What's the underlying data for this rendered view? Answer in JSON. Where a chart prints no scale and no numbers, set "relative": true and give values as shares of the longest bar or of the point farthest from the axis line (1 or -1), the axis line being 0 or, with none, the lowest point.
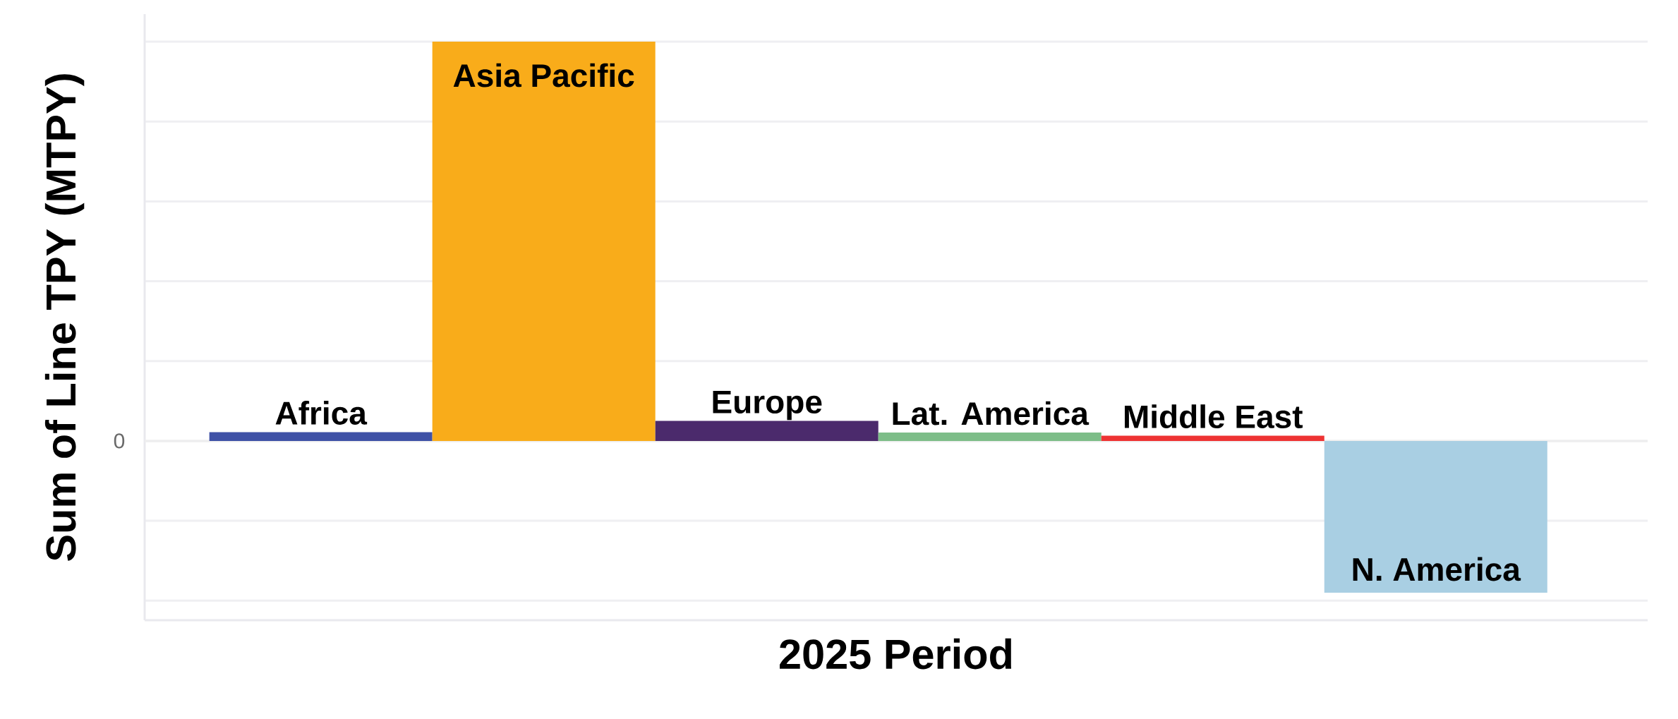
{
  "chart_data": {
    "type": "bar",
    "relative": true,
    "categories": [
      "Africa",
      "Asia Pacific",
      "Europe",
      "Lat. America",
      "Middle East",
      "N. America"
    ],
    "values": [
      0.022,
      1,
      0.05,
      0.021,
      0.013,
      -0.38
    ],
    "colors": [
      "#3f51a6",
      "#f9ac1a",
      "#4b2a6c",
      "#7dbd88",
      "#ee3333",
      "#a9cfe3"
    ],
    "xlabel": "2025 Period",
    "ylabel": "Sum of Line TPY (MTPY)",
    "grid": "y",
    "ref_lines": [
      {
        "axis": "y",
        "value": 0,
        "label": "0",
        "color": "#eeeeee"
      }
    ]
  }
}
